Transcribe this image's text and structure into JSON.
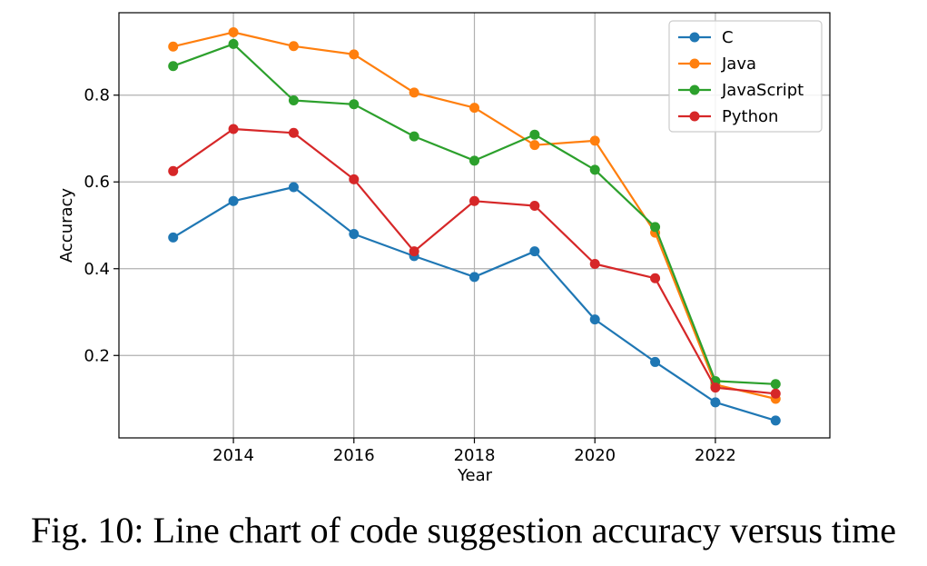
{
  "chart_data": {
    "type": "line",
    "title": "",
    "xlabel": "Year",
    "ylabel": "Accuracy",
    "x": [
      2013,
      2014,
      2015,
      2016,
      2017,
      2018,
      2019,
      2020,
      2021,
      2022,
      2023
    ],
    "xlim": [
      2012.1,
      2023.9
    ],
    "ylim": [
      0.01,
      0.99
    ],
    "xticks": [
      2014,
      2016,
      2018,
      2020,
      2022
    ],
    "xtick_labels": [
      "2014",
      "2016",
      "2018",
      "2020",
      "2022"
    ],
    "yticks": [
      0.2,
      0.4,
      0.6,
      0.8
    ],
    "ytick_labels": [
      "0.2",
      "0.4",
      "0.6",
      "0.8"
    ],
    "grid": true,
    "legend_position": "top-right",
    "series": [
      {
        "name": "C",
        "color": "#1f77b4",
        "values": [
          0.472,
          0.556,
          0.588,
          0.48,
          0.429,
          0.381,
          0.44,
          0.283,
          0.185,
          0.092,
          0.05
        ]
      },
      {
        "name": "Java",
        "color": "#ff7f0e",
        "values": [
          0.912,
          0.945,
          0.913,
          0.894,
          0.806,
          0.771,
          0.685,
          0.695,
          0.483,
          0.133,
          0.1
        ]
      },
      {
        "name": "JavaScript",
        "color": "#2ca02c",
        "values": [
          0.867,
          0.918,
          0.788,
          0.779,
          0.705,
          0.649,
          0.709,
          0.628,
          0.496,
          0.141,
          0.134
        ]
      },
      {
        "name": "Python",
        "color": "#d62728",
        "values": [
          0.625,
          0.722,
          0.713,
          0.606,
          0.44,
          0.556,
          0.545,
          0.411,
          0.378,
          0.126,
          0.112
        ]
      }
    ]
  },
  "caption": "Fig. 10: Line chart of code suggestion accuracy versus time"
}
